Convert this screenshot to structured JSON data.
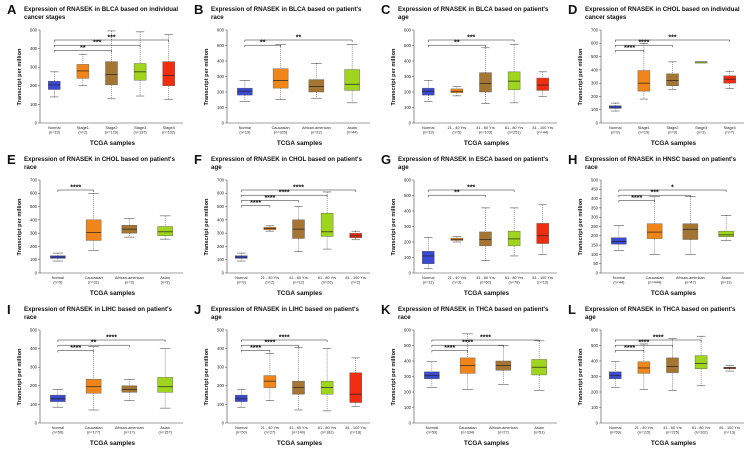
{
  "colors": {
    "normal": "#3b49d1",
    "orange": "#f08519",
    "brown": "#a57533",
    "green": "#9fd51c",
    "red": "#f02d11",
    "axis": "#444444"
  },
  "chart_data": [
    {
      "letter": "A",
      "title": "Expression of RNASEK in BLCA based on individual cancer stages",
      "type": "box",
      "xlabel": "TCGA samples",
      "ylabel": "Transcript per million",
      "ylim": [
        0,
        500
      ],
      "yticks": [
        0,
        100,
        200,
        300,
        400,
        500
      ],
      "categories": [
        "Normal (n=19)",
        "Stage1 (n=2)",
        "Stage2 (n=129)",
        "Stage3 (n=137)",
        "Stage4 (n=132)"
      ],
      "colors": [
        "normal",
        "orange",
        "brown",
        "green",
        "red"
      ],
      "boxes": [
        [
          140,
          180,
          205,
          225,
          275
        ],
        [
          200,
          240,
          280,
          315,
          370
        ],
        [
          130,
          205,
          260,
          330,
          495
        ],
        [
          145,
          230,
          275,
          320,
          490
        ],
        [
          125,
          200,
          255,
          330,
          475
        ]
      ],
      "sig": [
        {
          "label": "**",
          "from": 0,
          "to": 2
        },
        {
          "label": "***",
          "from": 0,
          "to": 3
        },
        {
          "label": "***",
          "from": 0,
          "to": 4
        }
      ]
    },
    {
      "letter": "B",
      "title": "Expression of RNASEK in BLCA based on patient's race",
      "type": "box",
      "xlabel": "TCGA samples",
      "ylabel": "Transcript per million",
      "ylim": [
        0,
        600
      ],
      "yticks": [
        0,
        100,
        200,
        300,
        400,
        500,
        600
      ],
      "categories": [
        "Normal (n=19)",
        "Caucasian (n=325)",
        "African-american (n=22)",
        "Asian (n=44)"
      ],
      "colors": [
        "normal",
        "orange",
        "brown",
        "green"
      ],
      "boxes": [
        [
          140,
          180,
          205,
          225,
          275
        ],
        [
          150,
          225,
          275,
          350,
          505
        ],
        [
          160,
          200,
          235,
          280,
          385
        ],
        [
          130,
          210,
          250,
          345,
          505
        ]
      ],
      "sig": [
        {
          "label": "**",
          "from": 0,
          "to": 1
        },
        {
          "label": "**",
          "from": 0,
          "to": 3
        }
      ]
    },
    {
      "letter": "C",
      "title": "Expression of RNASEK in BLCA based on patient's age",
      "type": "box",
      "xlabel": "TCGA samples",
      "ylabel": "Transcript per million",
      "ylim": [
        0,
        600
      ],
      "yticks": [
        0,
        100,
        200,
        300,
        400,
        500,
        600
      ],
      "categories": [
        "Normal (n=19)",
        "21 - 40 Yrs (n=5)",
        "41 - 60 Yrs (n=103)",
        "61 - 80 Yrs (n=251)",
        "81 - 100 Yrs (n=44)"
      ],
      "colors": [
        "normal",
        "orange",
        "brown",
        "green",
        "red"
      ],
      "boxes": [
        [
          140,
          180,
          205,
          225,
          275
        ],
        [
          175,
          195,
          205,
          220,
          235
        ],
        [
          125,
          200,
          255,
          325,
          485
        ],
        [
          130,
          215,
          270,
          330,
          505
        ],
        [
          170,
          210,
          245,
          290,
          330
        ]
      ],
      "sig": [
        {
          "label": "**",
          "from": 0,
          "to": 2
        },
        {
          "label": "***",
          "from": 0,
          "to": 3
        }
      ]
    },
    {
      "letter": "D",
      "title": "Expression of RNASEK in CHOL based on individual cancer stages",
      "type": "box",
      "xlabel": "TCGA samples",
      "ylabel": "Transcript per million",
      "ylim": [
        0,
        700
      ],
      "yticks": [
        0,
        100,
        200,
        300,
        400,
        500,
        600,
        700
      ],
      "categories": [
        "Normal (n=9)",
        "Stage1 (n=19)",
        "Stage2 (n=9)",
        "Stage3 (n=1)",
        "Stage4 (n=7)"
      ],
      "colors": [
        "normal",
        "orange",
        "brown",
        "green",
        "red"
      ],
      "boxes": [
        [
          90,
          110,
          120,
          130,
          150
        ],
        [
          180,
          240,
          300,
          395,
          600
        ],
        [
          250,
          280,
          320,
          370,
          460
        ],
        [
          460,
          460,
          460,
          460,
          460
        ],
        [
          260,
          300,
          330,
          355,
          390
        ]
      ],
      "sig": [
        {
          "label": "****",
          "from": 0,
          "to": 1
        },
        {
          "label": "****",
          "from": 0,
          "to": 2
        },
        {
          "label": "***",
          "from": 0,
          "to": 4
        }
      ]
    },
    {
      "letter": "E",
      "title": "Expression of RNASEK in CHOL based on patient's race",
      "type": "box",
      "xlabel": "TCGA samples",
      "ylabel": "Transcript per million",
      "ylim": [
        0,
        700
      ],
      "yticks": [
        0,
        100,
        200,
        300,
        400,
        500,
        600,
        700
      ],
      "categories": [
        "Normal (n=9)",
        "Caucasian (n=31)",
        "African-american (n=3)",
        "Asian (n=3)"
      ],
      "colors": [
        "normal",
        "orange",
        "brown",
        "green"
      ],
      "boxes": [
        [
          90,
          110,
          120,
          130,
          150
        ],
        [
          170,
          245,
          305,
          400,
          600
        ],
        [
          270,
          300,
          330,
          360,
          410
        ],
        [
          255,
          280,
          310,
          350,
          430
        ]
      ],
      "sig": [
        {
          "label": "****",
          "from": 0,
          "to": 1
        }
      ]
    },
    {
      "letter": "F",
      "title": "Expression of RNASEK in CHOL based on patient's age",
      "type": "box",
      "xlabel": "TCGA samples",
      "ylabel": "Transcript per million",
      "ylim": [
        0,
        700
      ],
      "yticks": [
        0,
        100,
        200,
        300,
        400,
        500,
        600,
        700
      ],
      "categories": [
        "Normal (n=9)",
        "21 - 40 Yrs (n=2)",
        "41 - 60 Yrs (n=12)",
        "61 - 80 Yrs (n=20)",
        "81 - 100 Yrs (n=2)"
      ],
      "colors": [
        "normal",
        "orange",
        "brown",
        "green",
        "red"
      ],
      "boxes": [
        [
          90,
          110,
          120,
          130,
          150
        ],
        [
          315,
          325,
          335,
          345,
          355
        ],
        [
          160,
          260,
          330,
          400,
          500
        ],
        [
          180,
          275,
          310,
          450,
          610
        ],
        [
          250,
          265,
          280,
          300,
          315
        ]
      ],
      "sig": [
        {
          "label": "****",
          "from": 0,
          "to": 1
        },
        {
          "label": "****",
          "from": 0,
          "to": 2
        },
        {
          "label": "****",
          "from": 0,
          "to": 3
        },
        {
          "label": "****",
          "from": 0,
          "to": 4
        }
      ]
    },
    {
      "letter": "G",
      "title": "Expression of RNASEK in ESCA based on patient's age",
      "type": "box",
      "xlabel": "TCGA samples",
      "ylabel": "Transcript per million",
      "ylim": [
        0,
        600
      ],
      "yticks": [
        0,
        100,
        200,
        300,
        400,
        500,
        600
      ],
      "categories": [
        "Normal (n=11)",
        "21 - 40 Yrs (n=3)",
        "41 - 60 Yrs (n=60)",
        "61 - 80 Yrs (n=78)",
        "81 - 100 Yrs (n=10)"
      ],
      "colors": [
        "normal",
        "orange",
        "brown",
        "green",
        "red"
      ],
      "boxes": [
        [
          30,
          60,
          110,
          140,
          230
        ],
        [
          200,
          210,
          215,
          225,
          235
        ],
        [
          80,
          175,
          215,
          265,
          420
        ],
        [
          110,
          175,
          220,
          270,
          420
        ],
        [
          120,
          190,
          240,
          320,
          440
        ]
      ],
      "sig": [
        {
          "label": "**",
          "from": 0,
          "to": 2
        },
        {
          "label": "***",
          "from": 0,
          "to": 3
        }
      ]
    },
    {
      "letter": "H",
      "title": "Expression of RNASEK in HNSC based on patient's race",
      "type": "box",
      "xlabel": "TCGA samples",
      "ylabel": "Transcript per million",
      "ylim": [
        0,
        500
      ],
      "yticks": [
        0,
        50,
        100,
        150,
        200,
        250,
        300,
        350,
        400,
        450,
        500
      ],
      "categories": [
        "Normal (n=44)",
        "Caucasian (n=444)",
        "African-american (n=47)",
        "Asian (n=11)"
      ],
      "colors": [
        "normal",
        "orange",
        "brown",
        "green"
      ],
      "boxes": [
        [
          120,
          155,
          170,
          190,
          255
        ],
        [
          100,
          185,
          220,
          265,
          410
        ],
        [
          100,
          180,
          235,
          265,
          410
        ],
        [
          175,
          195,
          205,
          225,
          310
        ]
      ],
      "sig": [
        {
          "label": "****",
          "from": 0,
          "to": 1
        },
        {
          "label": "***",
          "from": 0,
          "to": 2
        },
        {
          "label": "*",
          "from": 0,
          "to": 3
        }
      ]
    },
    {
      "letter": "I",
      "title": "Expression of RNASEK in LIHC based on patient's race",
      "type": "box",
      "xlabel": "TCGA samples",
      "ylabel": "Transcript per million",
      "ylim": [
        0,
        500
      ],
      "yticks": [
        0,
        100,
        200,
        300,
        400,
        500
      ],
      "categories": [
        "Normal (n=50)",
        "Caucasian (n=177)",
        "African-american (n=17)",
        "Asian (n=157)"
      ],
      "colors": [
        "normal",
        "orange",
        "brown",
        "green"
      ],
      "boxes": [
        [
          85,
          115,
          130,
          150,
          180
        ],
        [
          70,
          160,
          195,
          235,
          410
        ],
        [
          120,
          165,
          180,
          200,
          235
        ],
        [
          80,
          165,
          195,
          245,
          400
        ]
      ],
      "sig": [
        {
          "label": "****",
          "from": 0,
          "to": 1
        },
        {
          "label": "**",
          "from": 0,
          "to": 2
        },
        {
          "label": "****",
          "from": 0,
          "to": 3
        }
      ]
    },
    {
      "letter": "J",
      "title": "Expression of RNASEK in LIHC based on patient's age",
      "type": "box",
      "xlabel": "TCGA samples",
      "ylabel": "Transcript per million",
      "ylim": [
        0,
        500
      ],
      "yticks": [
        0,
        100,
        200,
        300,
        400,
        500
      ],
      "categories": [
        "Normal (n=50)",
        "21 - 40 Yrs (n=27)",
        "41 - 60 Yrs (n=140)",
        "61 - 80 Yrs (n=181)",
        "81 - 100 Yrs (n=18)"
      ],
      "colors": [
        "normal",
        "orange",
        "brown",
        "green",
        "red"
      ],
      "boxes": [
        [
          85,
          115,
          130,
          150,
          180
        ],
        [
          120,
          190,
          225,
          255,
          375
        ],
        [
          70,
          155,
          190,
          225,
          405
        ],
        [
          65,
          155,
          190,
          225,
          400
        ],
        [
          90,
          110,
          155,
          270,
          350
        ]
      ],
      "sig": [
        {
          "label": "****",
          "from": 0,
          "to": 1
        },
        {
          "label": "****",
          "from": 0,
          "to": 2
        },
        {
          "label": "****",
          "from": 0,
          "to": 3
        }
      ]
    },
    {
      "letter": "K",
      "title": "Expression of RNASEK in THCA based on patient's race",
      "type": "box",
      "xlabel": "TCGA samples",
      "ylabel": "Transcript per million",
      "ylim": [
        0,
        600
      ],
      "yticks": [
        0,
        100,
        200,
        300,
        400,
        500,
        600
      ],
      "categories": [
        "Normal (n=59)",
        "Caucasian (n=334)",
        "African-american (n=27)",
        "Asian (n=51)"
      ],
      "colors": [
        "normal",
        "orange",
        "brown",
        "green"
      ],
      "boxes": [
        [
          230,
          285,
          305,
          330,
          395
        ],
        [
          215,
          320,
          370,
          420,
          575
        ],
        [
          250,
          340,
          370,
          400,
          500
        ],
        [
          210,
          310,
          360,
          410,
          530
        ]
      ],
      "sig": [
        {
          "label": "****",
          "from": 0,
          "to": 1
        },
        {
          "label": "****",
          "from": 0,
          "to": 2
        },
        {
          "label": "****",
          "from": 0,
          "to": 3
        }
      ]
    },
    {
      "letter": "L",
      "title": "Expression of RNASEK in THCA based on patient's age",
      "type": "box",
      "xlabel": "TCGA samples",
      "ylabel": "Transcript per million",
      "ylim": [
        0,
        600
      ],
      "yticks": [
        0,
        100,
        200,
        300,
        400,
        500,
        600
      ],
      "categories": [
        "Normal (n=59)",
        "21 - 40 Yrs (n=115)",
        "41 - 60 Yrs (n=225)",
        "61 - 80 Yrs (n=102)",
        "81 - 100 Yrs (n=13)"
      ],
      "colors": [
        "normal",
        "orange",
        "brown",
        "green",
        "red"
      ],
      "boxes": [
        [
          230,
          285,
          305,
          330,
          395
        ],
        [
          215,
          320,
          355,
          395,
          510
        ],
        [
          210,
          325,
          365,
          420,
          545
        ],
        [
          240,
          350,
          385,
          435,
          560
        ],
        [
          335,
          350,
          355,
          360,
          370
        ]
      ],
      "sig": [
        {
          "label": "****",
          "from": 0,
          "to": 1
        },
        {
          "label": "****",
          "from": 0,
          "to": 2
        },
        {
          "label": "****",
          "from": 0,
          "to": 3
        }
      ]
    }
  ]
}
